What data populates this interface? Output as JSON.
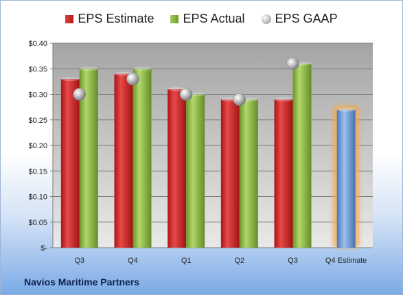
{
  "company": "Navios Maritime Partners",
  "legend": {
    "estimate": "EPS Estimate",
    "actual": "EPS Actual",
    "gaap": "EPS GAAP"
  },
  "chart_data": {
    "type": "bar",
    "categories": [
      "Q3",
      "Q4",
      "Q1",
      "Q2",
      "Q3",
      "Q4 Estimate"
    ],
    "series": [
      {
        "name": "EPS Estimate",
        "values": [
          0.33,
          0.34,
          0.31,
          0.29,
          0.29,
          null
        ],
        "color": "#c62424"
      },
      {
        "name": "EPS Actual",
        "values": [
          0.35,
          0.35,
          0.3,
          0.29,
          0.36,
          null
        ],
        "color": "#8cb444"
      },
      {
        "name": "EPS GAAP",
        "values": [
          0.3,
          0.33,
          0.3,
          0.29,
          0.36,
          null
        ],
        "color": "#b0b0b0"
      }
    ],
    "forecast": {
      "category": "Q4 Estimate",
      "value": 0.27,
      "color": "#6a9ad6",
      "glow": "#f5a84a"
    },
    "yticks": [
      "$0.40",
      "$0.35",
      "$0.30",
      "$0.25",
      "$0.20",
      "$0.15",
      "$0.10",
      "$0.05",
      "$-"
    ],
    "ylim": [
      0,
      0.4
    ],
    "grid": true,
    "legend_position": "top"
  }
}
